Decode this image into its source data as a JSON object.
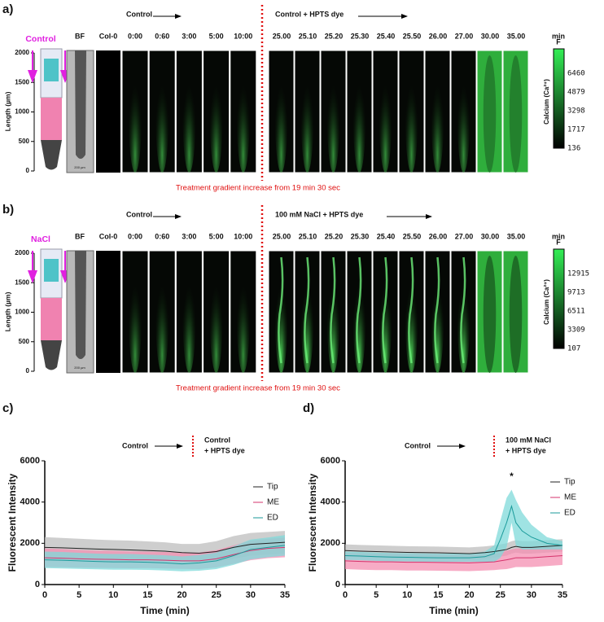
{
  "panels": [
    {
      "letter": "a)",
      "stain": "Control",
      "bf": "BF",
      "col0": "Col-0",
      "times_control": [
        "0:00",
        "0:60",
        "3:00",
        "5:00",
        "10:00"
      ],
      "times_treat": [
        "25.00",
        "25.10",
        "25.20",
        "25.30",
        "25.40",
        "25.50",
        "26.00",
        "27.00",
        "30.00",
        "35.00"
      ],
      "unit": "min",
      "phase1": "Control",
      "phase2": "Control + HPTS dye",
      "length_label": "Length (µm)",
      "length_ticks": [
        0,
        500,
        1000,
        1500,
        2000
      ],
      "scale_bar": "200 µm",
      "colorbar_title": "F",
      "colorbar_label": "Calcium (Ca²⁺)",
      "colorbar_ticks": [
        136,
        1717,
        3298,
        4879,
        6460
      ],
      "note": "Treatment gradient increase from 19 min 30 sec"
    },
    {
      "letter": "b)",
      "stain": "NaCl",
      "bf": "BF",
      "col0": "Col-0",
      "times_control": [
        "0:00",
        "0:60",
        "3:00",
        "5:00",
        "10:00"
      ],
      "times_treat": [
        "25.00",
        "25.10",
        "25.20",
        "25.30",
        "25.40",
        "25.50",
        "26.00",
        "27.00",
        "30.00",
        "35.00"
      ],
      "unit": "min",
      "phase1": "Control",
      "phase2": "100 mM NaCl + HPTS dye",
      "length_label": "Length (µm)",
      "length_ticks": [
        0,
        500,
        1000,
        1500,
        2000
      ],
      "scale_bar": "200 µm",
      "colorbar_title": "F",
      "colorbar_label": "Calcium (Ca²⁺)",
      "colorbar_ticks": [
        107,
        3309,
        6511,
        9713,
        12915
      ],
      "note": "Treatment gradient increase from 19 min 30 sec"
    }
  ],
  "chart_data": [
    {
      "type": "line",
      "letter": "c)",
      "xlabel": "Time (min)",
      "ylabel": "Fluorescent Intensity",
      "phase1": "Control",
      "phase2": [
        "Control",
        "+ HPTS dye"
      ],
      "x": [
        0,
        2.5,
        5,
        7.5,
        10,
        12.5,
        15,
        17.5,
        20,
        22.5,
        25,
        27.5,
        30,
        32.5,
        35
      ],
      "series": [
        {
          "name": "Tip",
          "color": "#222222",
          "band_color": "#bdbdbd",
          "values": [
            1800,
            1780,
            1750,
            1720,
            1700,
            1680,
            1650,
            1620,
            1550,
            1520,
            1600,
            1800,
            1950,
            2000,
            2050
          ],
          "error": [
            500,
            480,
            470,
            460,
            450,
            450,
            440,
            430,
            420,
            450,
            500,
            550,
            550,
            550,
            550
          ]
        },
        {
          "name": "ME",
          "color": "#d6336c",
          "band_color": "#f48fb1",
          "values": [
            1300,
            1280,
            1250,
            1230,
            1220,
            1200,
            1200,
            1180,
            1150,
            1150,
            1250,
            1450,
            1650,
            1750,
            1800
          ],
          "error": [
            450,
            440,
            430,
            420,
            420,
            410,
            400,
            400,
            390,
            400,
            420,
            450,
            470,
            470,
            480
          ]
        },
        {
          "name": "ED",
          "color": "#1a9a9a",
          "band_color": "#7fd9d9",
          "values": [
            1200,
            1180,
            1150,
            1120,
            1100,
            1100,
            1080,
            1050,
            1000,
            1050,
            1150,
            1400,
            1700,
            1800,
            1900
          ],
          "error": [
            400,
            400,
            390,
            380,
            380,
            380,
            370,
            370,
            360,
            380,
            400,
            450,
            480,
            480,
            500
          ]
        }
      ],
      "xlim": [
        0,
        35
      ],
      "xticks": [
        0,
        5,
        10,
        15,
        20,
        25,
        30,
        35
      ],
      "ylim": [
        0,
        6000
      ],
      "yticks": [
        0,
        2000,
        4000,
        6000
      ]
    },
    {
      "type": "line",
      "letter": "d)",
      "xlabel": "Time (min)",
      "ylabel": "Fluorescent Intensity",
      "phase1": "Control",
      "phase2": [
        "100 mM NaCl",
        "+ HPTS dye"
      ],
      "annotation": "*",
      "x": [
        0,
        2.5,
        5,
        7.5,
        10,
        12.5,
        15,
        17.5,
        20,
        22.5,
        24,
        25,
        26,
        26.8,
        27.5,
        28.5,
        30,
        32.5,
        35
      ],
      "series": [
        {
          "name": "Tip",
          "color": "#222222",
          "band_color": "#bdbdbd",
          "values": [
            1650,
            1620,
            1600,
            1580,
            1560,
            1550,
            1540,
            1520,
            1500,
            1550,
            1600,
            1650,
            1700,
            1800,
            1850,
            1800,
            1800,
            1850,
            1900
          ],
          "error": [
            300,
            300,
            300,
            300,
            300,
            300,
            300,
            300,
            300,
            300,
            300,
            300,
            300,
            300,
            300,
            300,
            300,
            300,
            300
          ]
        },
        {
          "name": "ME",
          "color": "#d6336c",
          "band_color": "#f48fb1",
          "values": [
            1150,
            1120,
            1100,
            1100,
            1080,
            1080,
            1070,
            1060,
            1050,
            1080,
            1100,
            1150,
            1200,
            1250,
            1300,
            1300,
            1300,
            1350,
            1400
          ],
          "error": [
            400,
            400,
            400,
            400,
            400,
            400,
            400,
            400,
            400,
            400,
            400,
            420,
            450,
            450,
            450,
            450,
            450,
            450,
            450
          ]
        },
        {
          "name": "ED",
          "color": "#1a9a9a",
          "band_color": "#7fd9d9",
          "values": [
            1400,
            1380,
            1350,
            1330,
            1320,
            1310,
            1300,
            1300,
            1300,
            1350,
            1500,
            2200,
            3000,
            3800,
            3000,
            2600,
            2300,
            2000,
            1900
          ],
          "error": [
            200,
            200,
            200,
            200,
            200,
            200,
            200,
            200,
            200,
            250,
            400,
            900,
            1200,
            800,
            1100,
            900,
            600,
            300,
            200
          ]
        }
      ],
      "xlim": [
        0,
        35
      ],
      "xticks": [
        0,
        5,
        10,
        15,
        20,
        25,
        30,
        35
      ],
      "ylim": [
        0,
        6000
      ],
      "yticks": [
        0,
        2000,
        4000,
        6000
      ]
    }
  ]
}
